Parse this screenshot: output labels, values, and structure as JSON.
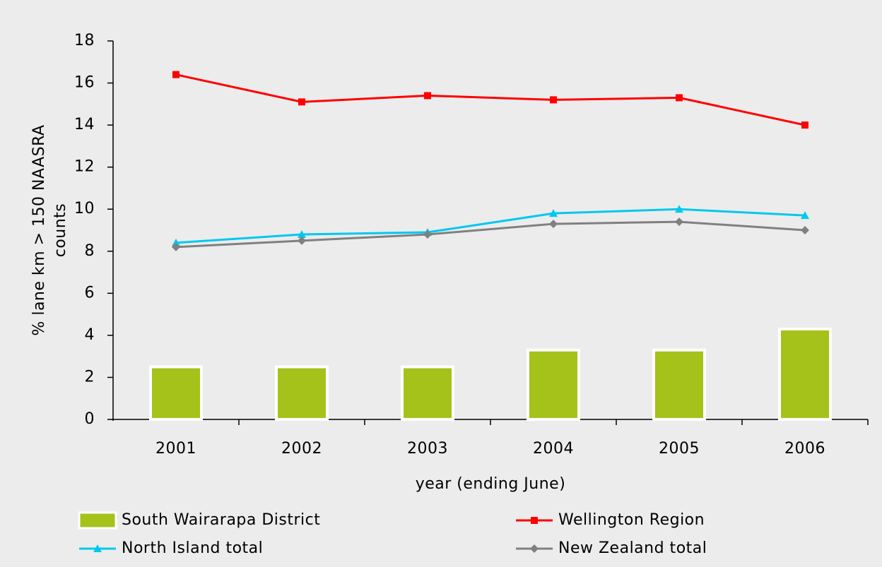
{
  "chart_data": {
    "type": "combo",
    "y_label": [
      "% lane km > 150 NAASRA",
      "counts"
    ],
    "x_label": "year (ending June)",
    "categories": [
      "2001",
      "2002",
      "2003",
      "2004",
      "2005",
      "2006"
    ],
    "ylim": [
      0,
      18
    ],
    "yticks": [
      0,
      2,
      4,
      6,
      8,
      10,
      12,
      14,
      16,
      18
    ],
    "series": [
      {
        "name": "South Wairarapa District",
        "type": "bar",
        "color": "#a5c21a",
        "values": [
          2.5,
          2.5,
          2.5,
          3.3,
          3.3,
          4.3
        ]
      },
      {
        "name": "Wellington Region",
        "type": "line",
        "marker": "square",
        "color": "#ff0000",
        "values": [
          16.4,
          15.1,
          15.4,
          15.2,
          15.3,
          14.0
        ]
      },
      {
        "name": "North Island total",
        "type": "line",
        "marker": "triangle",
        "color": "#00c8f0",
        "values": [
          8.4,
          8.8,
          8.9,
          9.8,
          10.0,
          9.7
        ]
      },
      {
        "name": "New Zealand total",
        "type": "line",
        "marker": "diamond",
        "color": "#808080",
        "values": [
          8.2,
          8.5,
          8.8,
          9.3,
          9.4,
          9.0
        ]
      }
    ]
  }
}
